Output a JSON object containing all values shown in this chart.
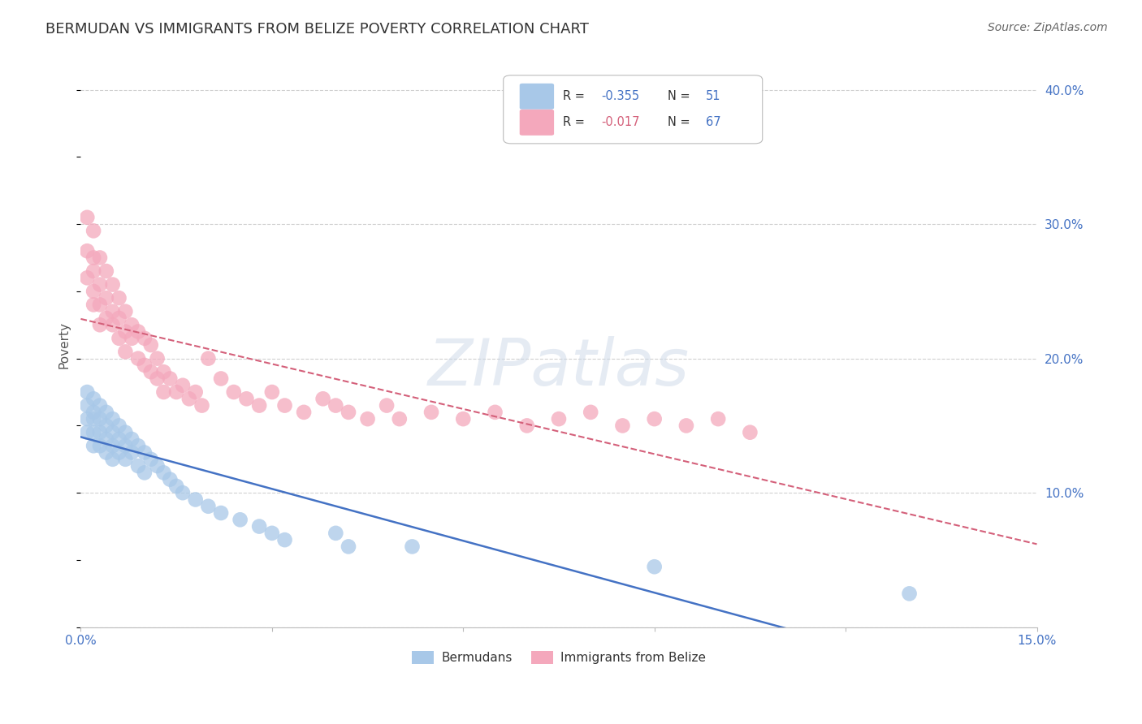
{
  "title": "BERMUDAN VS IMMIGRANTS FROM BELIZE POVERTY CORRELATION CHART",
  "source": "Source: ZipAtlas.com",
  "ylabel": "Poverty",
  "xlim": [
    0.0,
    0.15
  ],
  "ylim": [
    0.0,
    0.42
  ],
  "ytick_values": [
    0.0,
    0.1,
    0.2,
    0.3,
    0.4
  ],
  "ytick_labels": [
    "",
    "10.0%",
    "20.0%",
    "30.0%",
    "40.0%"
  ],
  "xtick_positions": [
    0.0,
    0.03,
    0.06,
    0.09,
    0.12,
    0.15
  ],
  "xtick_labels": [
    "0.0%",
    "",
    "",
    "",
    "",
    "15.0%"
  ],
  "grid_color": "#d0d0d0",
  "background_color": "#ffffff",
  "series1_label": "Bermudans",
  "series1_color": "#a8c8e8",
  "series1_R": -0.355,
  "series1_N": 51,
  "series1_line_color": "#4472c4",
  "series2_label": "Immigrants from Belize",
  "series2_color": "#f4a8bc",
  "series2_R": -0.017,
  "series2_N": 67,
  "series2_line_color": "#d4607a",
  "watermark_text": "ZIPatlas",
  "bermudans_x": [
    0.001,
    0.001,
    0.001,
    0.001,
    0.002,
    0.002,
    0.002,
    0.002,
    0.002,
    0.003,
    0.003,
    0.003,
    0.003,
    0.004,
    0.004,
    0.004,
    0.004,
    0.005,
    0.005,
    0.005,
    0.005,
    0.006,
    0.006,
    0.006,
    0.007,
    0.007,
    0.007,
    0.008,
    0.008,
    0.009,
    0.009,
    0.01,
    0.01,
    0.011,
    0.012,
    0.013,
    0.014,
    0.015,
    0.016,
    0.018,
    0.02,
    0.022,
    0.025,
    0.028,
    0.03,
    0.032,
    0.04,
    0.042,
    0.052,
    0.09,
    0.13
  ],
  "bermudans_y": [
    0.175,
    0.165,
    0.155,
    0.145,
    0.17,
    0.16,
    0.155,
    0.145,
    0.135,
    0.165,
    0.155,
    0.145,
    0.135,
    0.16,
    0.15,
    0.14,
    0.13,
    0.155,
    0.145,
    0.135,
    0.125,
    0.15,
    0.14,
    0.13,
    0.145,
    0.135,
    0.125,
    0.14,
    0.13,
    0.135,
    0.12,
    0.13,
    0.115,
    0.125,
    0.12,
    0.115,
    0.11,
    0.105,
    0.1,
    0.095,
    0.09,
    0.085,
    0.08,
    0.075,
    0.07,
    0.065,
    0.07,
    0.06,
    0.06,
    0.045,
    0.025
  ],
  "belize_x": [
    0.001,
    0.001,
    0.001,
    0.002,
    0.002,
    0.002,
    0.002,
    0.002,
    0.003,
    0.003,
    0.003,
    0.003,
    0.004,
    0.004,
    0.004,
    0.005,
    0.005,
    0.005,
    0.006,
    0.006,
    0.006,
    0.007,
    0.007,
    0.007,
    0.008,
    0.008,
    0.009,
    0.009,
    0.01,
    0.01,
    0.011,
    0.011,
    0.012,
    0.012,
    0.013,
    0.013,
    0.014,
    0.015,
    0.016,
    0.017,
    0.018,
    0.019,
    0.02,
    0.022,
    0.024,
    0.026,
    0.028,
    0.03,
    0.032,
    0.035,
    0.038,
    0.04,
    0.042,
    0.045,
    0.048,
    0.05,
    0.055,
    0.06,
    0.065,
    0.07,
    0.075,
    0.08,
    0.085,
    0.09,
    0.095,
    0.1,
    0.105
  ],
  "belize_y": [
    0.305,
    0.28,
    0.26,
    0.295,
    0.275,
    0.265,
    0.25,
    0.24,
    0.275,
    0.255,
    0.24,
    0.225,
    0.265,
    0.245,
    0.23,
    0.255,
    0.235,
    0.225,
    0.245,
    0.23,
    0.215,
    0.235,
    0.22,
    0.205,
    0.225,
    0.215,
    0.22,
    0.2,
    0.215,
    0.195,
    0.21,
    0.19,
    0.2,
    0.185,
    0.19,
    0.175,
    0.185,
    0.175,
    0.18,
    0.17,
    0.175,
    0.165,
    0.2,
    0.185,
    0.175,
    0.17,
    0.165,
    0.175,
    0.165,
    0.16,
    0.17,
    0.165,
    0.16,
    0.155,
    0.165,
    0.155,
    0.16,
    0.155,
    0.16,
    0.15,
    0.155,
    0.16,
    0.15,
    0.155,
    0.15,
    0.155,
    0.145
  ],
  "legend_R1": "R = -0.355",
  "legend_N1": "N = 51",
  "legend_R2": "R = -0.017",
  "legend_N2": "N = 67",
  "r1_color": "#4472c4",
  "r2_color": "#d4607a",
  "n_color": "#4472c4"
}
